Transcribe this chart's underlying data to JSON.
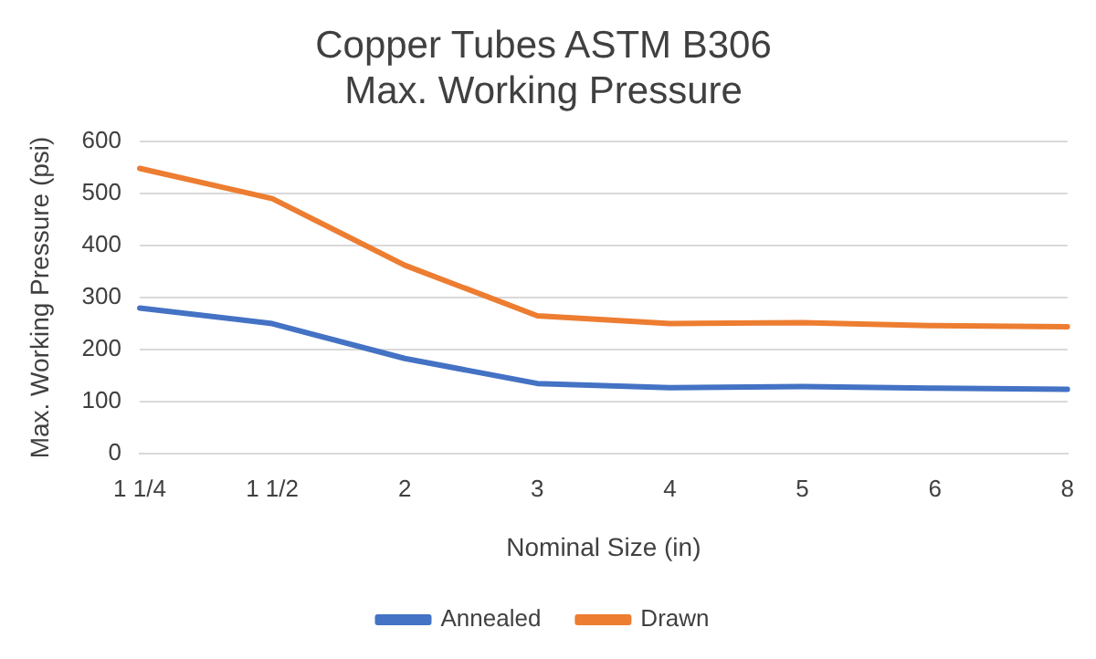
{
  "chart_data": {
    "type": "line",
    "title": [
      "Copper Tubes ASTM B306",
      "Max. Working Pressure"
    ],
    "xlabel": "Nominal Size (in)",
    "ylabel": "Max. Working Pressure (psi)",
    "categories": [
      "1 1/4",
      "1 1/2",
      "2",
      "3",
      "4",
      "5",
      "6",
      "8"
    ],
    "series": [
      {
        "name": "Annealed",
        "color": "#4472c4",
        "values": [
          280,
          250,
          183,
          135,
          127,
          129,
          126,
          124
        ]
      },
      {
        "name": "Drawn",
        "color": "#ed7d31",
        "values": [
          548,
          490,
          362,
          265,
          250,
          252,
          246,
          244
        ]
      }
    ],
    "ylim": [
      0,
      600
    ],
    "yticks": [
      0,
      100,
      200,
      300,
      400,
      500,
      600
    ],
    "grid": "y",
    "legend": "bottom",
    "marker": "none",
    "line_style": "solid"
  }
}
